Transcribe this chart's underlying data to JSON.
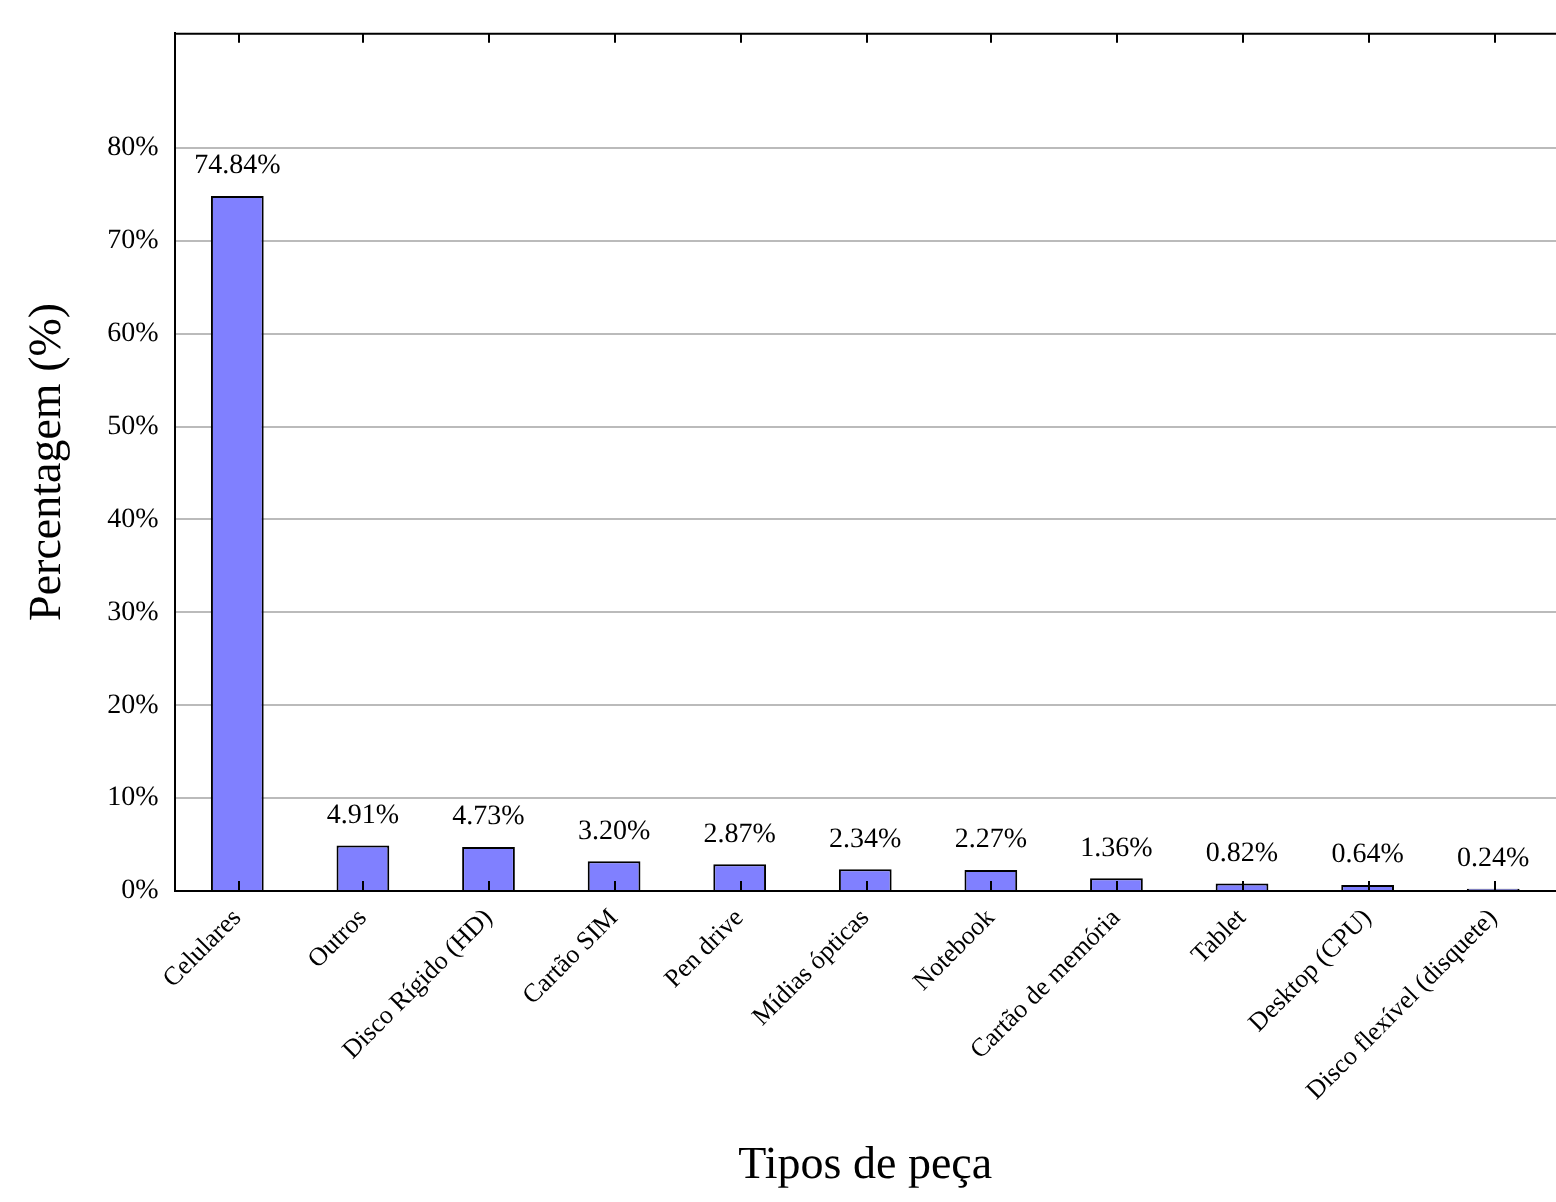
{
  "chart_data": {
    "type": "bar",
    "xlabel": "Tipos de peça",
    "ylabel": "Percentagem (%)",
    "categories": [
      "Celulares",
      "Outros",
      "Disco Rígido (HD)",
      "Cartão SIM",
      "Pen drive",
      "Mídias ópticas",
      "Notebook",
      "Cartão de memória",
      "Tablet",
      "Desktop (CPU)",
      "Disco flexível (disquete)"
    ],
    "values": [
      74.84,
      4.91,
      4.73,
      3.2,
      2.87,
      2.34,
      2.27,
      1.36,
      0.82,
      0.64,
      0.24
    ],
    "value_labels": [
      "74.84%",
      "4.91%",
      "4.73%",
      "3.20%",
      "2.87%",
      "2.34%",
      "2.27%",
      "1.36%",
      "0.82%",
      "0.64%",
      "0.24%"
    ],
    "color": "#8080ff",
    "ylim": [
      0,
      92.4
    ],
    "yticks": [
      {
        "value": 0,
        "label": "0%"
      },
      {
        "value": 10,
        "label": "10%"
      },
      {
        "value": 20,
        "label": "20%"
      },
      {
        "value": 30,
        "label": "30%"
      },
      {
        "value": 40,
        "label": "40%"
      },
      {
        "value": 50,
        "label": "50%"
      },
      {
        "value": 60,
        "label": "60%"
      },
      {
        "value": 70,
        "label": "70%"
      },
      {
        "value": 80,
        "label": "80%"
      }
    ],
    "grid": "y",
    "legend": false
  }
}
